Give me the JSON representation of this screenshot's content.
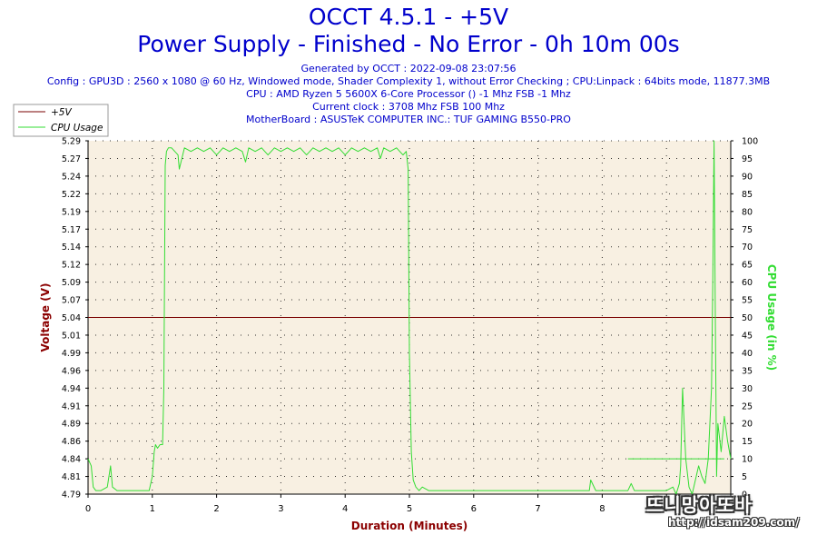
{
  "header": {
    "title": "OCCT 4.5.1 - +5V",
    "subtitle": "Power Supply - Finished - No Error - 0h 10m 00s",
    "info_lines": [
      "Generated by OCCT : 2022-09-08 23:07:56",
      "Config : GPU3D : 2560 x 1080 @ 60 Hz, Windowed mode, Shader Complexity 1, without Error Checking ; CPU:Linpack : 64bits mode, 11877.3MB",
      "CPU : AMD Ryzen 5 5600X 6-Core Processor () -1 Mhz FSB -1 Mhz",
      "Current clock : 3708 Mhz FSB 100 Mhz",
      "MotherBoard : ASUSTeK COMPUTER INC.: TUF GAMING B550-PRO"
    ]
  },
  "watermark": {
    "text": "뜨니망아또바",
    "url": "http://idsam209.com/"
  },
  "colors": {
    "voltage": "#7a0000",
    "cpu": "#33dd33",
    "plot_bg": "#f8f0e2",
    "dots": "#000000",
    "axis_label_left": "#8b0000",
    "axis_label_right": "#33dd33",
    "axis_label_bottom": "#8b0000"
  },
  "chart_data": {
    "type": "line",
    "xlabel": "Duration (Minutes)",
    "ylabel_left": "Voltage (V)",
    "ylabel_right": "CPU Usage (in %)",
    "xlim": [
      0,
      10
    ],
    "ylim_left": [
      4.79,
      5.29
    ],
    "ylim_right": [
      0,
      100
    ],
    "x_ticks": [
      "0",
      "1",
      "2",
      "3",
      "4",
      "5",
      "6",
      "7",
      "8",
      "9",
      "10"
    ],
    "y_left_ticks": [
      "5.29",
      "5.27",
      "5.24",
      "5.22",
      "5.19",
      "5.17",
      "5.14",
      "5.12",
      "5.09",
      "5.07",
      "5.04",
      "5.01",
      "4.99",
      "4.96",
      "4.94",
      "4.91",
      "4.89",
      "4.86",
      "4.84",
      "4.81",
      "4.79"
    ],
    "y_right_ticks": [
      "100",
      "95",
      "90",
      "85",
      "80",
      "75",
      "70",
      "65",
      "60",
      "55",
      "50",
      "45",
      "40",
      "35",
      "30",
      "25",
      "20",
      "15",
      "10",
      "5",
      "0"
    ],
    "legend_position": "top-left",
    "grid": true,
    "series": [
      {
        "name": "+5V",
        "axis": "left",
        "x": [
          0,
          10
        ],
        "values": [
          5.04,
          5.04
        ]
      },
      {
        "name": "CPU Usage",
        "axis": "right",
        "x": [
          0,
          0.05,
          0.08,
          0.12,
          0.2,
          0.3,
          0.35,
          0.38,
          0.45,
          0.6,
          0.8,
          0.95,
          1.0,
          1.03,
          1.05,
          1.08,
          1.12,
          1.16,
          1.18,
          1.2,
          1.22,
          1.25,
          1.3,
          1.4,
          1.42,
          1.5,
          1.6,
          1.7,
          1.8,
          1.9,
          2.0,
          2.1,
          2.2,
          2.3,
          2.4,
          2.45,
          2.5,
          2.6,
          2.7,
          2.8,
          2.9,
          3.0,
          3.1,
          3.2,
          3.3,
          3.4,
          3.5,
          3.6,
          3.7,
          3.8,
          3.9,
          4.0,
          4.1,
          4.2,
          4.3,
          4.4,
          4.5,
          4.55,
          4.6,
          4.7,
          4.8,
          4.9,
          4.95,
          4.98,
          5.0,
          5.03,
          5.06,
          5.1,
          5.15,
          5.2,
          5.3,
          5.5,
          5.7,
          6.0,
          6.3,
          6.6,
          6.9,
          7.2,
          7.5,
          7.8,
          7.82,
          7.9,
          8.2,
          8.4,
          8.45,
          8.5,
          8.6,
          8.8,
          9.0,
          9.1,
          9.15,
          9.2,
          9.22,
          9.25,
          9.3,
          9.35,
          9.4,
          9.5,
          9.55,
          9.6,
          9.65,
          9.7,
          9.72,
          9.74,
          9.76,
          9.78,
          9.8,
          9.85,
          9.9,
          9.95,
          10.0
        ],
        "values": [
          10,
          8,
          2,
          1,
          1,
          2,
          8,
          2,
          1,
          1,
          1,
          1,
          5,
          12,
          14,
          13,
          14,
          14,
          30,
          93,
          97,
          98,
          98,
          96,
          92,
          98,
          97,
          98,
          97,
          98,
          96,
          98,
          97,
          98,
          97,
          94,
          98,
          97,
          98,
          96,
          98,
          97,
          98,
          97,
          98,
          96,
          98,
          97,
          98,
          97,
          98,
          96,
          98,
          97,
          98,
          97,
          98,
          95,
          98,
          97,
          98,
          96,
          97,
          92,
          40,
          12,
          4,
          2,
          1,
          2,
          1,
          1,
          1,
          1,
          1,
          1,
          1,
          1,
          1,
          1,
          4,
          1,
          1,
          1,
          3,
          1,
          1,
          1,
          1,
          2,
          0,
          3,
          8,
          30,
          10,
          2,
          0,
          8,
          5,
          3,
          10,
          30,
          60,
          100,
          50,
          5,
          20,
          12,
          22,
          15,
          10
        ]
      }
    ],
    "annotation_line": {
      "x": [
        8.4,
        9.9
      ],
      "value": 10
    }
  }
}
